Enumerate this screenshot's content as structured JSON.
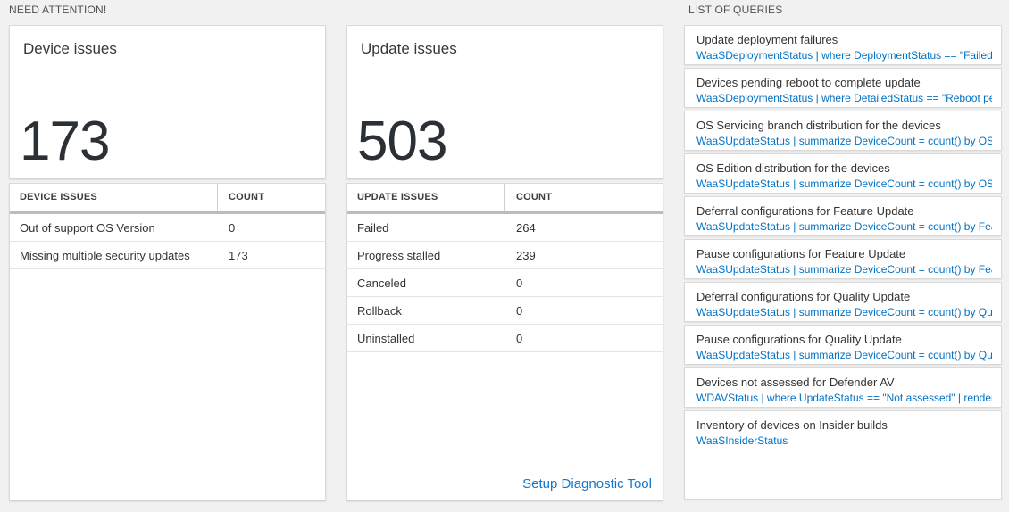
{
  "colors": {
    "background": "#f1f1f1",
    "card_background": "#ffffff",
    "card_border": "#d9d9d9",
    "accent_blue": "#0072c6",
    "big_number": "#2b3036",
    "thick_bar": "#bcbcbc"
  },
  "need_attention": {
    "header": "NEED ATTENTION!",
    "cards": [
      {
        "title": "Device issues",
        "count": "173",
        "table": {
          "headers": [
            "DEVICE ISSUES",
            "COUNT"
          ],
          "rows": [
            [
              "Out of support OS Version",
              "0"
            ],
            [
              "Missing multiple security updates",
              "173"
            ]
          ]
        },
        "footer_link": ""
      },
      {
        "title": "Update issues",
        "count": "503",
        "table": {
          "headers": [
            "UPDATE ISSUES",
            "COUNT"
          ],
          "rows": [
            [
              "Failed",
              "264"
            ],
            [
              "Progress stalled",
              "239"
            ],
            [
              "Canceled",
              "0"
            ],
            [
              "Rollback",
              "0"
            ],
            [
              "Uninstalled",
              "0"
            ]
          ]
        },
        "footer_link": "Setup Diagnostic Tool"
      }
    ]
  },
  "queries": {
    "header": "LIST OF QUERIES",
    "items": [
      {
        "title": "Update deployment failures",
        "query": "WaaSDeploymentStatus | where DeploymentStatus == \"Failed\" |..."
      },
      {
        "title": "Devices pending reboot to complete update",
        "query": "WaaSDeploymentStatus | where DetailedStatus == \"Reboot pend..."
      },
      {
        "title": "OS Servicing branch distribution for the devices",
        "query": "WaaSUpdateStatus | summarize DeviceCount = count() by OSSer..."
      },
      {
        "title": "OS Edition distribution for the devices",
        "query": "WaaSUpdateStatus | summarize DeviceCount = count() by OSEdit..."
      },
      {
        "title": "Deferral configurations for Feature Update",
        "query": "WaaSUpdateStatus | summarize DeviceCount = count() by Featur..."
      },
      {
        "title": "Pause configurations for Feature Update",
        "query": "WaaSUpdateStatus | summarize DeviceCount = count() by Featur..."
      },
      {
        "title": "Deferral configurations for Quality Update",
        "query": "WaaSUpdateStatus | summarize DeviceCount = count() by Qualit..."
      },
      {
        "title": "Pause configurations for Quality Update",
        "query": "WaaSUpdateStatus | summarize DeviceCount = count() by Qualit..."
      },
      {
        "title": "Devices not assessed for Defender AV",
        "query": "WDAVStatus | where UpdateStatus == \"Not assessed\" | render ta..."
      },
      {
        "title": "Inventory of devices on Insider builds",
        "query": "WaaSInsiderStatus"
      }
    ]
  }
}
